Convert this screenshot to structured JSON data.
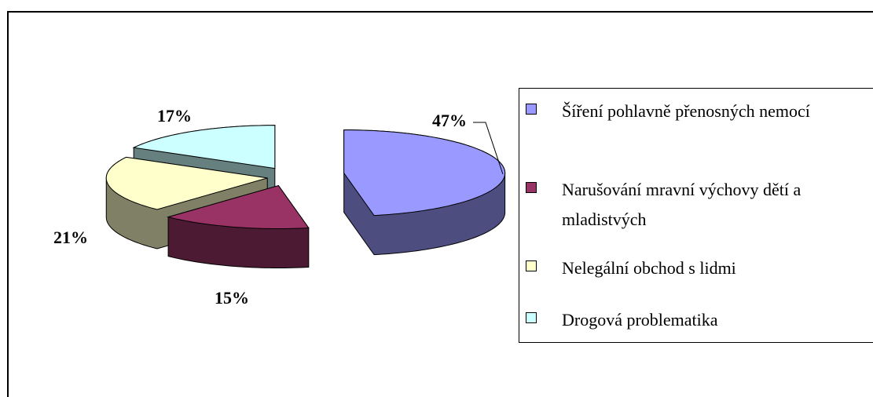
{
  "chart_data": {
    "type": "pie",
    "categories": [
      "Šíření pohlavně přenosných nemocí",
      "Narušování mravní výchovy dětí a mladistvých",
      "Nelegální obchod s lidmi",
      "Drogová problematika"
    ],
    "values": [
      47,
      15,
      21,
      17
    ],
    "value_labels": [
      "47%",
      "15%",
      "21%",
      "17%"
    ],
    "colors": [
      "#9999ff",
      "#993366",
      "#ffffcc",
      "#ccffff"
    ],
    "legend": "right"
  }
}
